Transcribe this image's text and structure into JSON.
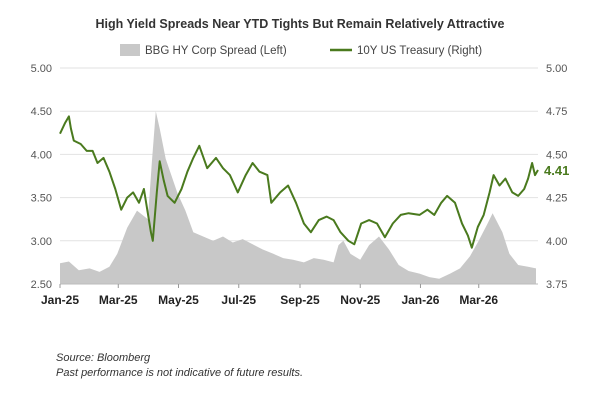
{
  "chart_data": {
    "type": "area+line",
    "title": "High Yield Spreads Near YTD Tights But Remain Relatively Attractive",
    "legend_placement": "top",
    "grid": true,
    "left_axis": {
      "range": [
        2.5,
        5.0
      ],
      "ticks": [
        "2.50",
        "3.00",
        "3.50",
        "4.00",
        "4.50",
        "5.00"
      ]
    },
    "right_axis": {
      "range": [
        3.75,
        5.0
      ],
      "ticks": [
        "3.75",
        "4.00",
        "4.25",
        "4.50",
        "4.75",
        "5.00"
      ]
    },
    "x_axis": {
      "range": [
        "2025-01-01",
        "2026-04-30"
      ],
      "ticks": [
        {
          "label": "Jan-25",
          "date": "2025-01-01"
        },
        {
          "label": "Mar-25",
          "date": "2025-03-01"
        },
        {
          "label": "May-25",
          "date": "2025-05-01"
        },
        {
          "label": "Jul-25",
          "date": "2025-07-01"
        },
        {
          "label": "Sep-25",
          "date": "2025-09-01"
        },
        {
          "label": "Nov-25",
          "date": "2025-11-01"
        },
        {
          "label": "Jan-26",
          "date": "2026-01-01"
        },
        {
          "label": "Mar-26",
          "date": "2026-03-01"
        }
      ]
    },
    "series": [
      {
        "name": "BBG HY Corp Spread (Left)",
        "axis": "left",
        "kind": "area",
        "color": "#c8c8c8",
        "points": [
          [
            "2025-01-01",
            2.74
          ],
          [
            "2025-01-10",
            2.76
          ],
          [
            "2025-01-20",
            2.66
          ],
          [
            "2025-01-31",
            2.68
          ],
          [
            "2025-02-10",
            2.64
          ],
          [
            "2025-02-20",
            2.7
          ],
          [
            "2025-02-28",
            2.85
          ],
          [
            "2025-03-10",
            3.15
          ],
          [
            "2025-03-20",
            3.35
          ],
          [
            "2025-03-31",
            3.25
          ],
          [
            "2025-04-04",
            3.9
          ],
          [
            "2025-04-08",
            4.5
          ],
          [
            "2025-04-12",
            4.3
          ],
          [
            "2025-04-18",
            3.95
          ],
          [
            "2025-04-24",
            3.75
          ],
          [
            "2025-04-30",
            3.55
          ],
          [
            "2025-05-08",
            3.35
          ],
          [
            "2025-05-16",
            3.1
          ],
          [
            "2025-05-26",
            3.05
          ],
          [
            "2025-06-05",
            3.0
          ],
          [
            "2025-06-15",
            3.05
          ],
          [
            "2025-06-25",
            2.98
          ],
          [
            "2025-07-05",
            3.02
          ],
          [
            "2025-07-15",
            2.96
          ],
          [
            "2025-07-25",
            2.9
          ],
          [
            "2025-08-05",
            2.85
          ],
          [
            "2025-08-15",
            2.8
          ],
          [
            "2025-08-25",
            2.78
          ],
          [
            "2025-09-05",
            2.75
          ],
          [
            "2025-09-15",
            2.8
          ],
          [
            "2025-09-25",
            2.78
          ],
          [
            "2025-10-05",
            2.75
          ],
          [
            "2025-10-10",
            2.95
          ],
          [
            "2025-10-15",
            3.0
          ],
          [
            "2025-10-22",
            2.85
          ],
          [
            "2025-11-01",
            2.78
          ],
          [
            "2025-11-10",
            2.95
          ],
          [
            "2025-11-20",
            3.05
          ],
          [
            "2025-11-30",
            2.9
          ],
          [
            "2025-12-10",
            2.72
          ],
          [
            "2025-12-20",
            2.65
          ],
          [
            "2025-12-31",
            2.62
          ],
          [
            "2026-01-10",
            2.58
          ],
          [
            "2026-01-20",
            2.56
          ],
          [
            "2026-01-31",
            2.62
          ],
          [
            "2026-02-10",
            2.68
          ],
          [
            "2026-02-20",
            2.82
          ],
          [
            "2026-03-01",
            3.0
          ],
          [
            "2026-03-10",
            3.2
          ],
          [
            "2026-03-15",
            3.32
          ],
          [
            "2026-03-25",
            3.1
          ],
          [
            "2026-04-01",
            2.85
          ],
          [
            "2026-04-10",
            2.72
          ],
          [
            "2026-04-20",
            2.7
          ],
          [
            "2026-04-28",
            2.68
          ]
        ]
      },
      {
        "name": "10Y US Treasury (Right)",
        "axis": "right",
        "kind": "line",
        "color": "#4a7a1e",
        "end_label": "4.41",
        "points": [
          [
            "2025-01-01",
            4.62
          ],
          [
            "2025-01-06",
            4.68
          ],
          [
            "2025-01-10",
            4.72
          ],
          [
            "2025-01-12",
            4.65
          ],
          [
            "2025-01-15",
            4.58
          ],
          [
            "2025-01-22",
            4.56
          ],
          [
            "2025-01-28",
            4.52
          ],
          [
            "2025-02-03",
            4.52
          ],
          [
            "2025-02-08",
            4.45
          ],
          [
            "2025-02-14",
            4.48
          ],
          [
            "2025-02-20",
            4.4
          ],
          [
            "2025-02-26",
            4.3
          ],
          [
            "2025-03-04",
            4.18
          ],
          [
            "2025-03-10",
            4.25
          ],
          [
            "2025-03-16",
            4.28
          ],
          [
            "2025-03-22",
            4.22
          ],
          [
            "2025-03-27",
            4.3
          ],
          [
            "2025-04-03",
            4.05
          ],
          [
            "2025-04-05",
            4.0
          ],
          [
            "2025-04-09",
            4.28
          ],
          [
            "2025-04-12",
            4.46
          ],
          [
            "2025-04-16",
            4.35
          ],
          [
            "2025-04-20",
            4.26
          ],
          [
            "2025-04-27",
            4.22
          ],
          [
            "2025-05-04",
            4.3
          ],
          [
            "2025-05-10",
            4.4
          ],
          [
            "2025-05-16",
            4.48
          ],
          [
            "2025-05-22",
            4.55
          ],
          [
            "2025-05-30",
            4.42
          ],
          [
            "2025-06-08",
            4.48
          ],
          [
            "2025-06-15",
            4.42
          ],
          [
            "2025-06-22",
            4.38
          ],
          [
            "2025-06-30",
            4.28
          ],
          [
            "2025-07-08",
            4.38
          ],
          [
            "2025-07-15",
            4.45
          ],
          [
            "2025-07-22",
            4.4
          ],
          [
            "2025-07-30",
            4.38
          ],
          [
            "2025-08-03",
            4.22
          ],
          [
            "2025-08-12",
            4.28
          ],
          [
            "2025-08-20",
            4.32
          ],
          [
            "2025-08-28",
            4.22
          ],
          [
            "2025-09-05",
            4.1
          ],
          [
            "2025-09-12",
            4.05
          ],
          [
            "2025-09-20",
            4.12
          ],
          [
            "2025-09-28",
            4.14
          ],
          [
            "2025-10-05",
            4.12
          ],
          [
            "2025-10-12",
            4.05
          ],
          [
            "2025-10-20",
            4.0
          ],
          [
            "2025-10-26",
            3.98
          ],
          [
            "2025-11-02",
            4.1
          ],
          [
            "2025-11-10",
            4.12
          ],
          [
            "2025-11-18",
            4.1
          ],
          [
            "2025-11-26",
            4.02
          ],
          [
            "2025-12-04",
            4.1
          ],
          [
            "2025-12-12",
            4.15
          ],
          [
            "2025-12-20",
            4.16
          ],
          [
            "2025-12-31",
            4.15
          ],
          [
            "2026-01-08",
            4.18
          ],
          [
            "2026-01-15",
            4.15
          ],
          [
            "2026-01-22",
            4.22
          ],
          [
            "2026-01-28",
            4.26
          ],
          [
            "2026-02-05",
            4.22
          ],
          [
            "2026-02-12",
            4.1
          ],
          [
            "2026-02-18",
            4.03
          ],
          [
            "2026-02-22",
            3.96
          ],
          [
            "2026-02-28",
            4.08
          ],
          [
            "2026-03-06",
            4.15
          ],
          [
            "2026-03-12",
            4.28
          ],
          [
            "2026-03-16",
            4.38
          ],
          [
            "2026-03-22",
            4.32
          ],
          [
            "2026-03-28",
            4.36
          ],
          [
            "2026-04-04",
            4.28
          ],
          [
            "2026-04-10",
            4.26
          ],
          [
            "2026-04-16",
            4.3
          ],
          [
            "2026-04-20",
            4.36
          ],
          [
            "2026-04-24",
            4.45
          ],
          [
            "2026-04-27",
            4.38
          ],
          [
            "2026-04-30",
            4.41
          ]
        ]
      }
    ]
  },
  "notes": {
    "source": "Source: Bloomberg",
    "disclaimer": "Past performance is not indicative of future results."
  }
}
